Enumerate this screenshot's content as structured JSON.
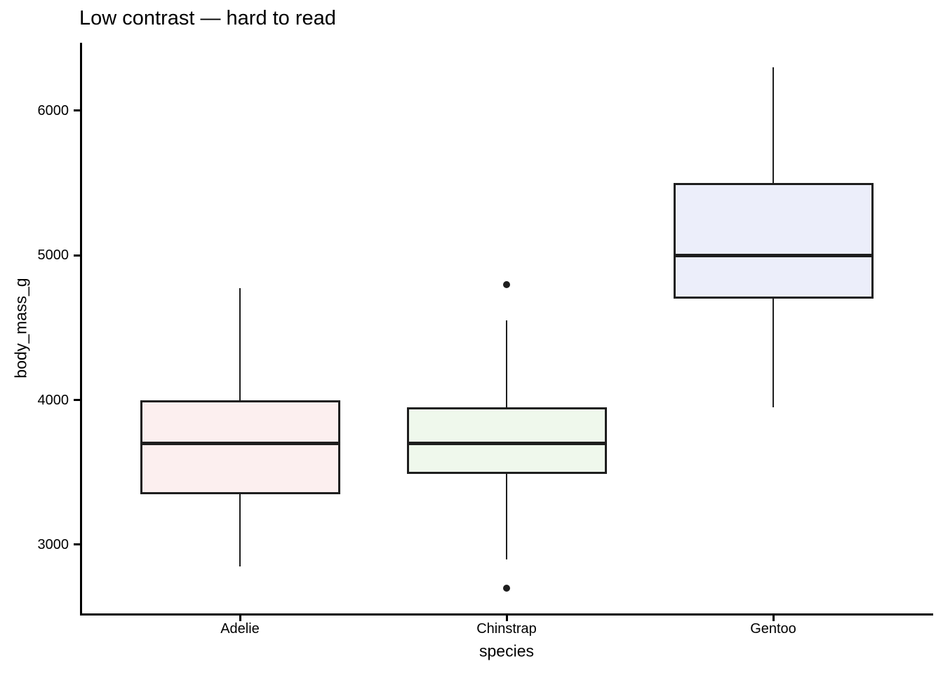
{
  "chart_data": {
    "type": "boxplot",
    "title": "Low contrast — hard to read",
    "xlabel": "species",
    "ylabel": "body_mass_g",
    "categories": [
      "Adelie",
      "Chinstrap",
      "Gentoo"
    ],
    "y_ticks": [
      3000,
      4000,
      5000,
      6000
    ],
    "ylim": [
      2525,
      6470
    ],
    "xlim_units": [
      0.4,
      3.6
    ],
    "box_width_units": 0.75,
    "grid": "off",
    "legend": "none",
    "background_color": "#FFFFFF",
    "axis_color": "#000000",
    "text_color": "#000000",
    "stroke_color": "#1E1E1E",
    "series": [
      {
        "name": "Adelie",
        "fill": "#FCEFEF",
        "whisker_low": 2850,
        "q1": 3350,
        "median": 3700,
        "q3": 4000,
        "whisker_high": 4775,
        "outliers": []
      },
      {
        "name": "Chinstrap",
        "fill": "#EFF8EC",
        "whisker_low": 2900,
        "q1": 3487.5,
        "median": 3700,
        "q3": 3950,
        "whisker_high": 4550,
        "outliers": [
          2700,
          4800
        ]
      },
      {
        "name": "Gentoo",
        "fill": "#ECEEFA",
        "whisker_low": 3950,
        "q1": 4700,
        "median": 5000,
        "q3": 5500,
        "whisker_high": 6300,
        "outliers": []
      }
    ]
  }
}
